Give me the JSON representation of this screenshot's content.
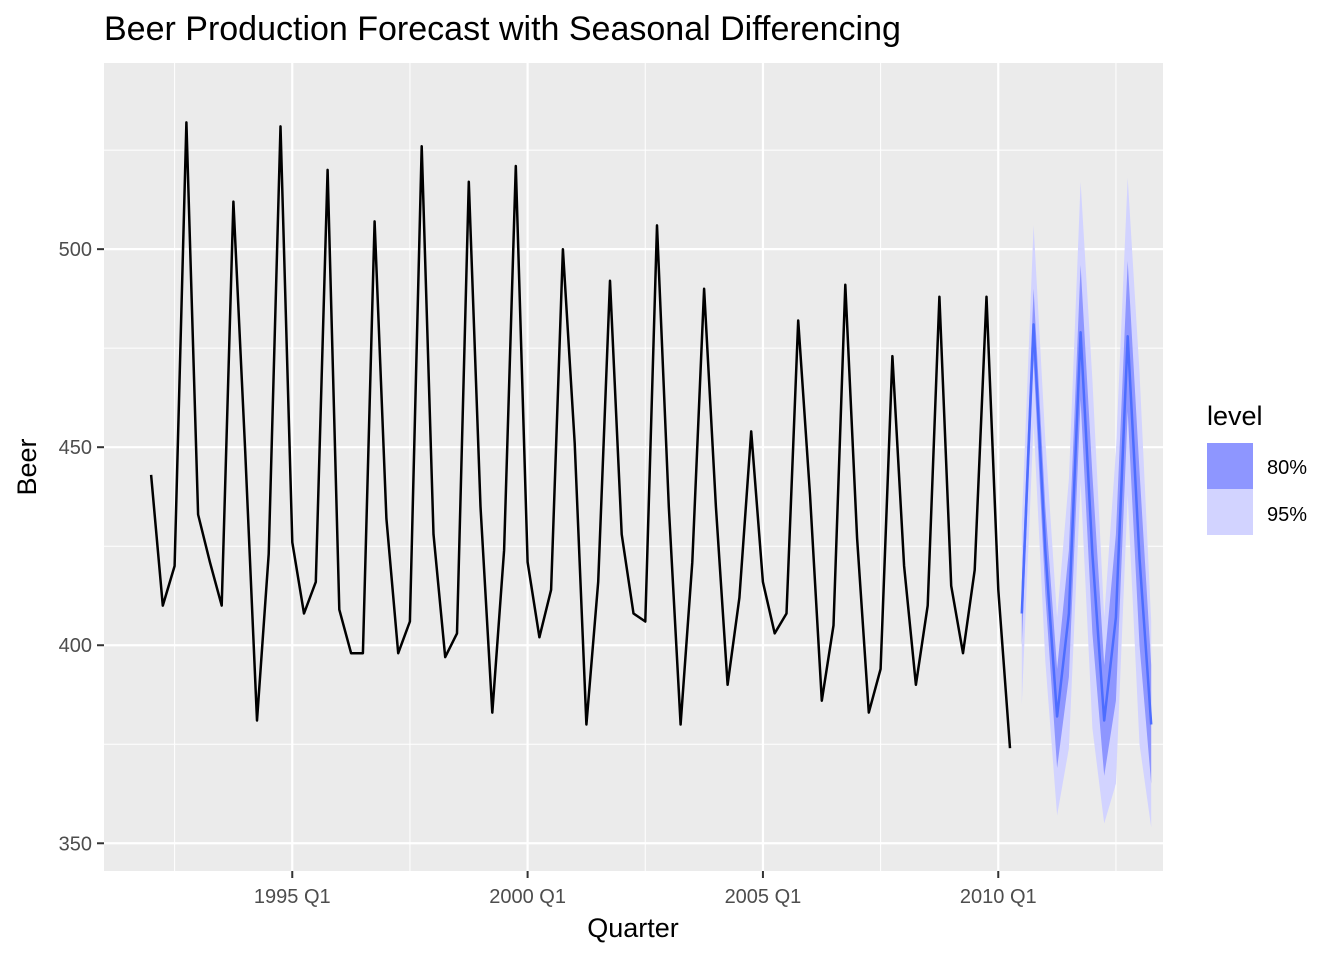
{
  "chart_data": {
    "type": "line",
    "title": "Beer Production Forecast with Seasonal Differencing",
    "xlabel": "Quarter",
    "ylabel": "Beer",
    "x_ticks": [
      "1995 Q1",
      "2000 Q1",
      "2005 Q1",
      "2010 Q1"
    ],
    "y_ticks": [
      350,
      400,
      450,
      500
    ],
    "xlim": [
      "1991 Q1",
      "2013 Q3"
    ],
    "ylim": [
      343,
      547
    ],
    "grid": true,
    "panel_color": "#ebebeb",
    "legend": {
      "title": "level",
      "position": "right",
      "entries": [
        {
          "label": "80%",
          "color": "#8e96ff"
        },
        {
          "label": "95%",
          "color": "#d2d3ff"
        }
      ]
    },
    "series": [
      {
        "type": "observed",
        "color": "#000000",
        "start": "1992 Q1",
        "values": [
          443,
          410,
          420,
          532,
          433,
          421,
          410,
          512,
          449,
          381,
          423,
          531,
          426,
          408,
          416,
          520,
          409,
          398,
          398,
          507,
          432,
          398,
          406,
          526,
          428,
          397,
          403,
          517,
          435,
          383,
          424,
          521,
          421,
          402,
          414,
          500,
          451,
          380,
          416,
          492,
          428,
          408,
          406,
          506,
          435,
          380,
          421,
          490,
          435,
          390,
          412,
          454,
          416,
          403,
          408,
          482,
          438,
          386,
          405,
          491,
          427,
          383,
          394,
          473,
          420,
          390,
          410,
          488,
          415,
          398,
          419,
          488,
          414,
          374
        ]
      },
      {
        "type": "forecast",
        "color": "#4d6dff",
        "start": "2010 Q3",
        "values": [
          408,
          481,
          424,
          382,
          408,
          479,
          423,
          381,
          407,
          478,
          422,
          380
        ],
        "lower80": [
          400,
          472,
          413,
          369,
          392,
          462,
          403,
          367,
          386,
          459,
          400,
          365
        ],
        "upper80": [
          416,
          490,
          435,
          394,
          424,
          496,
          443,
          395,
          428,
          497,
          444,
          395
        ],
        "lower95": [
          385,
          456,
          396,
          357,
          374,
          441,
          379,
          355,
          365,
          438,
          375,
          354
        ],
        "upper95": [
          431,
          506,
          452,
          407,
          442,
          517,
          467,
          407,
          449,
          518,
          469,
          406
        ]
      }
    ]
  }
}
